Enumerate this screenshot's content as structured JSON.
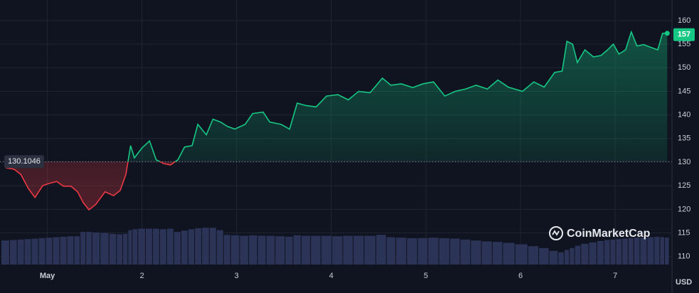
{
  "chart_data": {
    "type": "line",
    "x": [
      0.56,
      0.65,
      0.72,
      0.8,
      0.87,
      0.95,
      1.02,
      1.1,
      1.17,
      1.25,
      1.32,
      1.38,
      1.44,
      1.51,
      1.61,
      1.7,
      1.77,
      1.83,
      1.88,
      1.92,
      2.0,
      2.08,
      2.15,
      2.23,
      2.3,
      2.38,
      2.45,
      2.53,
      2.59,
      2.68,
      2.75,
      2.83,
      2.9,
      2.98,
      3.09,
      3.17,
      3.28,
      3.35,
      3.47,
      3.56,
      3.64,
      3.73,
      3.84,
      3.95,
      4.07,
      4.18,
      4.29,
      4.41,
      4.54,
      4.63,
      4.74,
      4.86,
      4.97,
      5.08,
      5.2,
      5.31,
      5.42,
      5.53,
      5.65,
      5.76,
      5.87,
      6.02,
      6.14,
      6.25,
      6.36,
      6.44,
      6.49,
      6.55,
      6.6,
      6.68,
      6.77,
      6.85,
      6.92,
      6.98,
      7.04,
      7.11,
      7.17,
      7.23,
      7.3,
      7.38,
      7.45,
      7.5,
      7.55
    ],
    "values": [
      128.8,
      128.5,
      127.4,
      124.4,
      122.5,
      125,
      125.5,
      125.9,
      124.9,
      124.9,
      123.7,
      121.4,
      119.9,
      121,
      123.7,
      122.9,
      124,
      127.4,
      133.5,
      130.9,
      133,
      134.5,
      130.5,
      129.7,
      129.4,
      130.5,
      133.2,
      133.5,
      138,
      135.8,
      139.1,
      138.5,
      137.6,
      137,
      138,
      140.3,
      140.6,
      138.5,
      138,
      137,
      142.5,
      142,
      141.7,
      144,
      144.3,
      143.2,
      145,
      144.7,
      147.8,
      146.3,
      146.6,
      145.8,
      146.6,
      147,
      144,
      145,
      145.5,
      146.3,
      145.5,
      147.4,
      145.9,
      145,
      147,
      145.9,
      149,
      149.3,
      155.6,
      155,
      151.1,
      153.8,
      152.3,
      152.6,
      153.8,
      155,
      152.9,
      153.8,
      157.6,
      154.6,
      154.9,
      154.3,
      153.8,
      157.3,
      157.3
    ],
    "volume": [
      113.4,
      113.5,
      113.6,
      113.7,
      113.8,
      113.9,
      114.0,
      114.1,
      114.2,
      114.3,
      114.3,
      115.2,
      115.2,
      115.1,
      115.0,
      114.8,
      114.7,
      114.8,
      115.6,
      115.8,
      115.9,
      115.9,
      115.9,
      115.8,
      115.9,
      115.2,
      115.5,
      115.8,
      116.0,
      116.1,
      116.1,
      115.6,
      114.6,
      114.5,
      114.4,
      114.5,
      114.4,
      114.4,
      114.3,
      114.2,
      114.5,
      114.4,
      114.4,
      114.4,
      114.3,
      114.4,
      114.4,
      114.4,
      114.6,
      114.1,
      114.0,
      113.9,
      113.9,
      114.0,
      113.9,
      113.8,
      113.6,
      113.4,
      113.2,
      113.1,
      112.9,
      112.6,
      112.2,
      111.8,
      111.2,
      110.9,
      111.4,
      111.8,
      112.3,
      112.7,
      113.0,
      113.3,
      113.5,
      113.6,
      113.7,
      113.8,
      113.9,
      114.0,
      114.0,
      114.1,
      114.2,
      114.1,
      114.0
    ],
    "baseline": 130.1046,
    "last_price": 157,
    "up_color": "#16c784",
    "down_color": "#ea3943",
    "volume_color": "#2b3357",
    "xlim": [
      0.5,
      7.6
    ],
    "xticks": [
      {
        "value": 1,
        "label": "May"
      },
      2,
      3,
      4,
      5,
      6,
      7
    ],
    "ylim": [
      108.3,
      163.6
    ],
    "yticks": [
      110,
      115,
      120,
      125,
      130,
      135,
      140,
      145,
      150,
      155,
      160
    ],
    "grid": true,
    "currency": "USD",
    "watermark": "CoinMarketCap"
  }
}
